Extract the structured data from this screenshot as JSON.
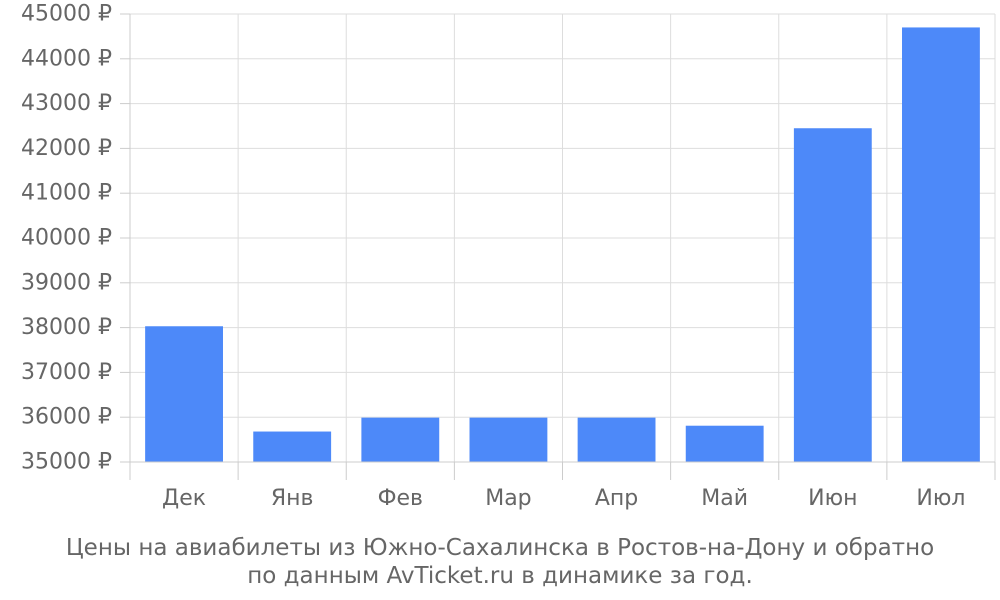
{
  "chart_data": {
    "type": "bar",
    "categories": [
      "Дек",
      "Янв",
      "Фев",
      "Мар",
      "Апр",
      "Май",
      "Июн",
      "Июл"
    ],
    "values": [
      38030,
      35680,
      35990,
      35990,
      35990,
      35810,
      42450,
      44700
    ],
    "ylim": [
      35000,
      45000
    ],
    "y_ticks": [
      "35000 ₽",
      "36000 ₽",
      "37000 ₽",
      "38000 ₽",
      "39000 ₽",
      "40000 ₽",
      "41000 ₽",
      "42000 ₽",
      "43000 ₽",
      "44000 ₽",
      "45000 ₽"
    ],
    "grid": true,
    "bar_color": "#4d89f9",
    "grid_color": "#dddddd",
    "axis_color": "#cccccc",
    "text_color": "#666666"
  },
  "caption": {
    "line1": "Цены на авиабилеты из Южно-Сахалинска в Ростов-на-Дону и обратно",
    "line2": "по данным AvTicket.ru в динамике за год."
  }
}
